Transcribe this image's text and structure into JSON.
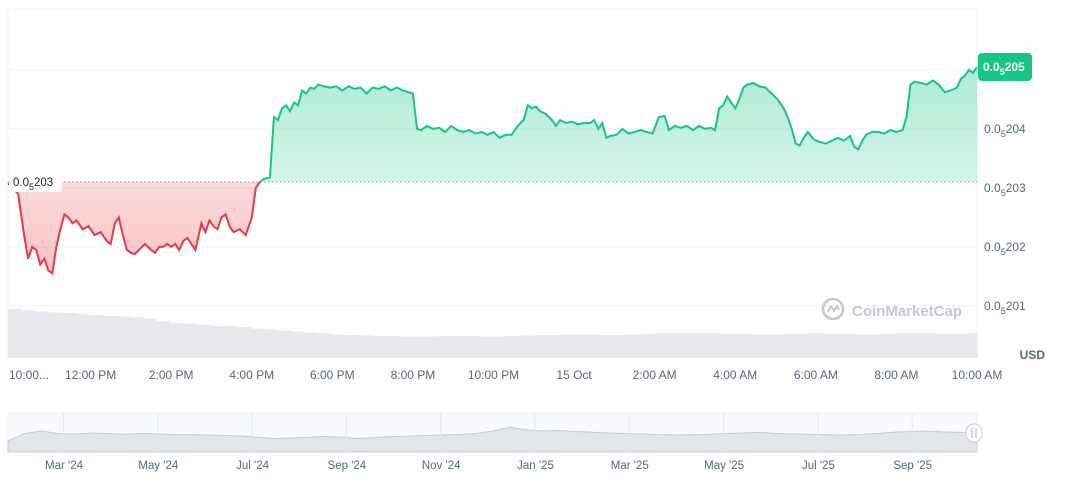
{
  "chart_data": {
    "type": "area",
    "currency": "USD",
    "watermark": "CoinMarketCap",
    "baseline_label": {
      "prefix": "0.0",
      "sub": "5",
      "suffix": "203"
    },
    "current_label": {
      "prefix": "0.0",
      "sub": "5",
      "suffix": "205"
    },
    "y_ticks": [
      {
        "value": 201,
        "prefix": "0.0",
        "sub": "5",
        "suffix": "201"
      },
      {
        "value": 202,
        "prefix": "0.0",
        "sub": "5",
        "suffix": "202"
      },
      {
        "value": 203,
        "prefix": "0.0",
        "sub": "5",
        "suffix": "203"
      },
      {
        "value": 204,
        "prefix": "0.0",
        "sub": "5",
        "suffix": "204"
      },
      {
        "value": 205,
        "prefix": "0.0",
        "sub": "5",
        "suffix": "205"
      }
    ],
    "x_ticks": [
      {
        "t": 0.0,
        "label": "10:00..."
      },
      {
        "t": 2.0,
        "label": "12:00 PM"
      },
      {
        "t": 4.0,
        "label": "2:00 PM"
      },
      {
        "t": 6.0,
        "label": "4:00 PM"
      },
      {
        "t": 8.0,
        "label": "6:00 PM"
      },
      {
        "t": 10.0,
        "label": "8:00 PM"
      },
      {
        "t": 12.0,
        "label": "10:00 PM"
      },
      {
        "t": 14.0,
        "label": "15 Oct"
      },
      {
        "t": 16.0,
        "label": "2:00 AM"
      },
      {
        "t": 18.0,
        "label": "4:00 AM"
      },
      {
        "t": 20.0,
        "label": "6:00 AM"
      },
      {
        "t": 22.0,
        "label": "8:00 AM"
      },
      {
        "t": 24.0,
        "label": "10:00 AM"
      }
    ],
    "x_range": [
      -0.05,
      24.0
    ],
    "y_range": [
      200.55,
      205.9
    ],
    "baseline": 203.1,
    "colors": {
      "up": "#16c784",
      "down": "#ea3943"
    },
    "series": [
      {
        "values": [
          [
            -0.05,
            203.08
          ],
          [
            0.2,
            202.9
          ],
          [
            0.35,
            202.2
          ],
          [
            0.45,
            201.8
          ],
          [
            0.55,
            202.0
          ],
          [
            0.65,
            201.95
          ],
          [
            0.75,
            201.7
          ],
          [
            0.85,
            201.8
          ],
          [
            0.95,
            201.6
          ],
          [
            1.05,
            201.55
          ],
          [
            1.15,
            202.0
          ],
          [
            1.25,
            202.3
          ],
          [
            1.35,
            202.55
          ],
          [
            1.45,
            202.5
          ],
          [
            1.55,
            202.4
          ],
          [
            1.65,
            202.45
          ],
          [
            1.8,
            202.3
          ],
          [
            1.95,
            202.35
          ],
          [
            2.1,
            202.2
          ],
          [
            2.25,
            202.25
          ],
          [
            2.4,
            202.1
          ],
          [
            2.5,
            202.05
          ],
          [
            2.6,
            202.4
          ],
          [
            2.7,
            202.5
          ],
          [
            2.8,
            202.2
          ],
          [
            2.9,
            201.95
          ],
          [
            3.0,
            201.9
          ],
          [
            3.1,
            201.88
          ],
          [
            3.2,
            201.95
          ],
          [
            3.35,
            202.05
          ],
          [
            3.5,
            201.95
          ],
          [
            3.6,
            201.9
          ],
          [
            3.7,
            202.0
          ],
          [
            3.8,
            202.0
          ],
          [
            3.9,
            202.05
          ],
          [
            4.0,
            202.0
          ],
          [
            4.1,
            202.05
          ],
          [
            4.2,
            201.95
          ],
          [
            4.3,
            202.1
          ],
          [
            4.4,
            202.15
          ],
          [
            4.5,
            202.05
          ],
          [
            4.6,
            201.95
          ],
          [
            4.75,
            202.4
          ],
          [
            4.85,
            202.25
          ],
          [
            4.95,
            202.45
          ],
          [
            5.05,
            202.35
          ],
          [
            5.15,
            202.3
          ],
          [
            5.25,
            202.5
          ],
          [
            5.35,
            202.55
          ],
          [
            5.45,
            202.35
          ],
          [
            5.55,
            202.25
          ],
          [
            5.7,
            202.3
          ],
          [
            5.85,
            202.2
          ],
          [
            6.0,
            202.5
          ],
          [
            6.1,
            203.0
          ],
          [
            6.2,
            203.1
          ],
          [
            6.3,
            203.15
          ],
          [
            6.45,
            203.18
          ],
          [
            6.55,
            204.2
          ],
          [
            6.65,
            204.15
          ],
          [
            6.75,
            204.35
          ],
          [
            6.85,
            204.4
          ],
          [
            6.95,
            204.3
          ],
          [
            7.05,
            204.45
          ],
          [
            7.15,
            204.4
          ],
          [
            7.25,
            204.65
          ],
          [
            7.35,
            204.6
          ],
          [
            7.45,
            204.7
          ],
          [
            7.55,
            204.68
          ],
          [
            7.65,
            204.75
          ],
          [
            7.8,
            204.72
          ],
          [
            7.95,
            204.7
          ],
          [
            8.1,
            204.72
          ],
          [
            8.25,
            204.65
          ],
          [
            8.4,
            204.72
          ],
          [
            8.55,
            204.68
          ],
          [
            8.7,
            204.7
          ],
          [
            8.85,
            204.6
          ],
          [
            9.0,
            204.7
          ],
          [
            9.15,
            204.68
          ],
          [
            9.3,
            204.72
          ],
          [
            9.45,
            204.65
          ],
          [
            9.6,
            204.7
          ],
          [
            9.75,
            204.65
          ],
          [
            9.9,
            204.62
          ],
          [
            10.0,
            204.6
          ],
          [
            10.1,
            204.0
          ],
          [
            10.2,
            203.98
          ],
          [
            10.35,
            204.05
          ],
          [
            10.5,
            204.0
          ],
          [
            10.65,
            204.02
          ],
          [
            10.8,
            203.95
          ],
          [
            10.95,
            204.05
          ],
          [
            11.1,
            203.98
          ],
          [
            11.25,
            203.95
          ],
          [
            11.4,
            203.98
          ],
          [
            11.55,
            203.92
          ],
          [
            11.7,
            203.95
          ],
          [
            11.85,
            203.9
          ],
          [
            12.0,
            203.95
          ],
          [
            12.15,
            203.85
          ],
          [
            12.3,
            203.9
          ],
          [
            12.45,
            203.9
          ],
          [
            12.6,
            204.05
          ],
          [
            12.75,
            204.15
          ],
          [
            12.85,
            204.4
          ],
          [
            12.95,
            204.35
          ],
          [
            13.05,
            204.38
          ],
          [
            13.15,
            204.3
          ],
          [
            13.3,
            204.25
          ],
          [
            13.45,
            204.15
          ],
          [
            13.55,
            204.05
          ],
          [
            13.65,
            204.15
          ],
          [
            13.8,
            204.1
          ],
          [
            13.95,
            204.12
          ],
          [
            14.1,
            204.08
          ],
          [
            14.25,
            204.1
          ],
          [
            14.4,
            204.1
          ],
          [
            14.5,
            204.15
          ],
          [
            14.6,
            204.0
          ],
          [
            14.7,
            204.1
          ],
          [
            14.8,
            203.85
          ],
          [
            14.9,
            203.88
          ],
          [
            15.05,
            203.9
          ],
          [
            15.2,
            204.0
          ],
          [
            15.35,
            203.92
          ],
          [
            15.5,
            203.95
          ],
          [
            15.65,
            203.98
          ],
          [
            15.8,
            203.95
          ],
          [
            15.95,
            203.92
          ],
          [
            16.1,
            204.2
          ],
          [
            16.25,
            204.22
          ],
          [
            16.35,
            203.98
          ],
          [
            16.5,
            204.05
          ],
          [
            16.65,
            204.02
          ],
          [
            16.8,
            204.05
          ],
          [
            16.95,
            203.98
          ],
          [
            17.1,
            204.05
          ],
          [
            17.25,
            204.0
          ],
          [
            17.4,
            204.02
          ],
          [
            17.5,
            203.98
          ],
          [
            17.6,
            204.35
          ],
          [
            17.7,
            204.4
          ],
          [
            17.8,
            204.55
          ],
          [
            17.9,
            204.45
          ],
          [
            18.0,
            204.35
          ],
          [
            18.1,
            204.5
          ],
          [
            18.2,
            204.7
          ],
          [
            18.3,
            204.75
          ],
          [
            18.45,
            204.78
          ],
          [
            18.6,
            204.72
          ],
          [
            18.75,
            204.7
          ],
          [
            18.9,
            204.6
          ],
          [
            19.05,
            204.5
          ],
          [
            19.2,
            204.35
          ],
          [
            19.3,
            204.2
          ],
          [
            19.4,
            204.0
          ],
          [
            19.5,
            203.75
          ],
          [
            19.6,
            203.72
          ],
          [
            19.7,
            203.85
          ],
          [
            19.8,
            203.95
          ],
          [
            19.95,
            203.82
          ],
          [
            20.1,
            203.78
          ],
          [
            20.25,
            203.75
          ],
          [
            20.4,
            203.8
          ],
          [
            20.55,
            203.85
          ],
          [
            20.7,
            203.8
          ],
          [
            20.85,
            203.88
          ],
          [
            20.95,
            203.7
          ],
          [
            21.05,
            203.65
          ],
          [
            21.15,
            203.8
          ],
          [
            21.25,
            203.9
          ],
          [
            21.4,
            203.95
          ],
          [
            21.55,
            203.95
          ],
          [
            21.7,
            203.92
          ],
          [
            21.85,
            203.98
          ],
          [
            22.0,
            203.95
          ],
          [
            22.15,
            203.98
          ],
          [
            22.25,
            204.2
          ],
          [
            22.35,
            204.75
          ],
          [
            22.45,
            204.8
          ],
          [
            22.6,
            204.78
          ],
          [
            22.75,
            204.75
          ],
          [
            22.9,
            204.82
          ],
          [
            23.05,
            204.75
          ],
          [
            23.2,
            204.62
          ],
          [
            23.35,
            204.65
          ],
          [
            23.5,
            204.7
          ],
          [
            23.6,
            204.85
          ],
          [
            23.7,
            204.9
          ],
          [
            23.8,
            205.0
          ],
          [
            23.9,
            204.95
          ],
          [
            24.0,
            205.05
          ]
        ]
      }
    ],
    "volume": [
      1.0,
      0.97,
      0.95,
      0.93,
      0.92,
      0.9,
      0.88,
      0.86,
      0.85,
      0.83,
      0.8,
      0.75,
      0.72,
      0.7,
      0.68,
      0.66,
      0.65,
      0.63,
      0.6,
      0.58,
      0.56,
      0.54,
      0.52,
      0.5,
      0.48,
      0.47,
      0.46,
      0.45,
      0.45,
      0.44,
      0.44,
      0.44,
      0.45,
      0.45,
      0.45,
      0.44,
      0.44,
      0.45,
      0.46,
      0.47,
      0.47,
      0.48,
      0.48,
      0.48,
      0.47,
      0.47,
      0.48,
      0.49,
      0.5,
      0.5,
      0.5,
      0.5,
      0.5,
      0.49,
      0.49,
      0.48,
      0.48,
      0.48,
      0.49,
      0.5,
      0.5,
      0.49,
      0.49,
      0.48,
      0.48,
      0.49,
      0.5,
      0.5,
      0.5,
      0.49,
      0.49,
      0.5
    ],
    "navigator": {
      "ticks": [
        "Mar '24",
        "May '24",
        "Jul '24",
        "Sep '24",
        "Nov '24",
        "Jan '25",
        "Mar '25",
        "May '25",
        "Jul '25",
        "Sep '25"
      ],
      "values": [
        0.2,
        0.5,
        0.6,
        0.5,
        0.48,
        0.52,
        0.5,
        0.47,
        0.5,
        0.48,
        0.46,
        0.45,
        0.44,
        0.42,
        0.4,
        0.35,
        0.3,
        0.32,
        0.35,
        0.38,
        0.35,
        0.3,
        0.34,
        0.38,
        0.4,
        0.42,
        0.44,
        0.46,
        0.5,
        0.6,
        0.75,
        0.65,
        0.6,
        0.62,
        0.58,
        0.55,
        0.52,
        0.5,
        0.48,
        0.46,
        0.44,
        0.45,
        0.47,
        0.5,
        0.52,
        0.55,
        0.5,
        0.48,
        0.47,
        0.45,
        0.44,
        0.46,
        0.5,
        0.55,
        0.58,
        0.6,
        0.56,
        0.55,
        0.5
      ]
    }
  }
}
